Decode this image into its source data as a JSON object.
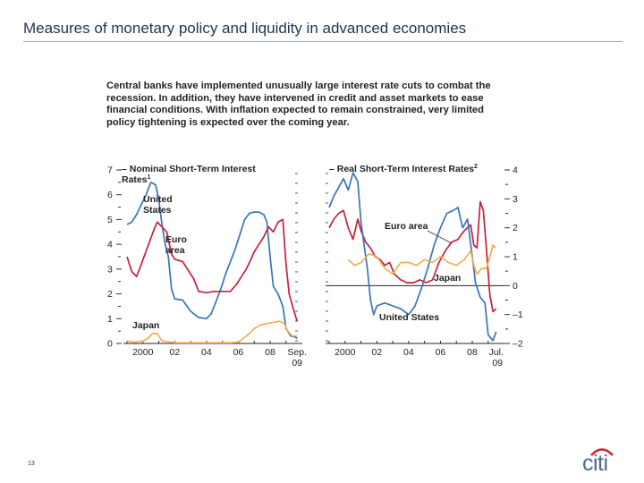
{
  "slide": {
    "title": "Measures of monetary policy and liquidity in advanced economies",
    "page_number": "13",
    "intro_lines": [
      "Central banks have implemented unusually large interest rate cuts to combat the",
      "recession. In addition, they have intervened in credit and asset markets to ease",
      "financial conditions. With inflation expected to remain constrained, very limited",
      "policy tightening is expected over the coming year."
    ],
    "logo_text": "citi",
    "logo_color": "#d32027"
  },
  "chart_data": [
    {
      "type": "line",
      "title_lines": [
        "Nominal Short-Term Interest",
        "Rates"
      ],
      "title_superscript": "1",
      "x_ticks": [
        {
          "x": 2000,
          "label": "2000"
        },
        {
          "x": 2002,
          "label": "02"
        },
        {
          "x": 2004,
          "label": "04"
        },
        {
          "x": 2006,
          "label": "06"
        },
        {
          "x": 2008,
          "label": "08"
        },
        {
          "x": 2009.7,
          "label": "Sep."
        }
      ],
      "x_sublabel": "09",
      "xlim": [
        1999.0,
        2009.8
      ],
      "ylim": [
        0,
        7
      ],
      "y_ticks": [
        0,
        1,
        2,
        3,
        4,
        5,
        6,
        7
      ],
      "y_axis_side": "left",
      "series": [
        {
          "name": "United States",
          "label_lines": [
            "United",
            "States"
          ],
          "color": "#3a74b8",
          "x": [
            1999.0,
            1999.3,
            1999.6,
            1999.9,
            2000.2,
            2000.5,
            2000.8,
            2001.0,
            2001.2,
            2001.4,
            2001.6,
            2001.8,
            2002.0,
            2002.5,
            2003.0,
            2003.5,
            2004.0,
            2004.3,
            2004.6,
            2004.9,
            2005.2,
            2005.5,
            2005.8,
            2006.1,
            2006.4,
            2006.7,
            2007.0,
            2007.3,
            2007.6,
            2007.8,
            2008.0,
            2008.2,
            2008.5,
            2008.8,
            2009.0,
            2009.3,
            2009.6,
            2009.7
          ],
          "y": [
            4.8,
            4.9,
            5.2,
            5.6,
            6.0,
            6.5,
            6.4,
            5.8,
            4.8,
            4.0,
            3.5,
            2.2,
            1.8,
            1.75,
            1.3,
            1.05,
            1.0,
            1.2,
            1.7,
            2.2,
            2.8,
            3.3,
            3.8,
            4.4,
            5.0,
            5.25,
            5.3,
            5.3,
            5.2,
            4.9,
            3.5,
            2.3,
            2.0,
            1.5,
            0.6,
            0.3,
            0.25,
            0.2
          ]
        },
        {
          "name": "Euro area",
          "label_lines": [
            "Euro",
            "area"
          ],
          "color": "#c8203a",
          "x": [
            1999.0,
            1999.3,
            1999.6,
            1999.9,
            2000.3,
            2000.7,
            2000.9,
            2001.2,
            2001.5,
            2001.8,
            2002.0,
            2002.5,
            2002.9,
            2003.2,
            2003.5,
            2004.0,
            2004.5,
            2005.0,
            2005.5,
            2005.9,
            2006.2,
            2006.5,
            2006.8,
            2007.0,
            2007.3,
            2007.6,
            2007.9,
            2008.2,
            2008.5,
            2008.8,
            2009.0,
            2009.2,
            2009.5,
            2009.7
          ],
          "y": [
            3.5,
            2.9,
            2.7,
            3.2,
            3.9,
            4.6,
            4.9,
            4.7,
            4.5,
            3.6,
            3.4,
            3.3,
            2.9,
            2.6,
            2.1,
            2.05,
            2.1,
            2.1,
            2.1,
            2.4,
            2.7,
            3.0,
            3.4,
            3.7,
            4.0,
            4.3,
            4.7,
            4.5,
            4.9,
            5.0,
            3.2,
            2.0,
            1.3,
            0.9
          ]
        },
        {
          "name": "Japan",
          "label_lines": [
            "Japan"
          ],
          "color": "#efae55",
          "x": [
            1999.0,
            1999.5,
            2000.0,
            2000.3,
            2000.6,
            2000.9,
            2001.2,
            2002.0,
            2003.0,
            2004.0,
            2005.0,
            2005.5,
            2006.0,
            2006.4,
            2006.7,
            2007.0,
            2007.4,
            2007.8,
            2008.2,
            2008.6,
            2008.9,
            2009.1,
            2009.4,
            2009.7
          ],
          "y": [
            0.1,
            0.05,
            0.1,
            0.2,
            0.4,
            0.4,
            0.1,
            0.03,
            0.03,
            0.03,
            0.03,
            0.03,
            0.05,
            0.25,
            0.4,
            0.6,
            0.75,
            0.8,
            0.85,
            0.9,
            0.8,
            0.5,
            0.3,
            0.3
          ]
        }
      ]
    },
    {
      "type": "line",
      "title_lines": [
        "Real Short-Term Interest Rates"
      ],
      "title_superscript": "2",
      "x_ticks": [
        {
          "x": 2000,
          "label": "2000"
        },
        {
          "x": 2002,
          "label": "02"
        },
        {
          "x": 2004,
          "label": "04"
        },
        {
          "x": 2006,
          "label": "06"
        },
        {
          "x": 2008,
          "label": "08"
        },
        {
          "x": 2009.5,
          "label": "Jul."
        }
      ],
      "x_sublabel": "09",
      "xlim": [
        1999.0,
        2009.8
      ],
      "ylim": [
        -2,
        4
      ],
      "y_ticks": [
        -2,
        -1,
        0,
        1,
        2,
        3,
        4
      ],
      "y_axis_side": "right",
      "zero_line": true,
      "series": [
        {
          "name": "Euro area",
          "label_lines": [
            "Euro area"
          ],
          "color": "#c8203a",
          "x": [
            1999.0,
            1999.3,
            1999.6,
            1999.9,
            2000.2,
            2000.5,
            2000.8,
            2001.0,
            2001.3,
            2001.6,
            2001.9,
            2002.2,
            2002.5,
            2002.8,
            2003.1,
            2003.5,
            2003.9,
            2004.3,
            2004.7,
            2005.1,
            2005.5,
            2005.9,
            2006.3,
            2006.7,
            2007.1,
            2007.5,
            2007.9,
            2008.1,
            2008.3,
            2008.5,
            2008.7,
            2008.9,
            2009.1,
            2009.3,
            2009.5
          ],
          "y": [
            2.0,
            2.3,
            2.5,
            2.6,
            2.0,
            1.6,
            2.3,
            1.9,
            1.5,
            1.3,
            1.0,
            0.9,
            0.7,
            0.8,
            0.4,
            0.2,
            0.1,
            0.1,
            0.2,
            0.1,
            0.2,
            0.8,
            1.2,
            1.5,
            1.6,
            1.9,
            2.1,
            1.4,
            1.3,
            2.9,
            2.6,
            1.2,
            -0.3,
            -0.9,
            -0.8
          ]
        },
        {
          "name": "United States",
          "label_lines": [
            "United States"
          ],
          "color": "#3a74b8",
          "x": [
            1999.0,
            1999.3,
            1999.6,
            1999.9,
            2000.2,
            2000.5,
            2000.8,
            2001.0,
            2001.2,
            2001.4,
            2001.6,
            2001.8,
            2002.0,
            2002.5,
            2003.0,
            2003.5,
            2004.0,
            2004.4,
            2004.8,
            2005.2,
            2005.6,
            2006.0,
            2006.4,
            2006.8,
            2007.1,
            2007.4,
            2007.7,
            2008.0,
            2008.2,
            2008.5,
            2008.8,
            2009.0,
            2009.3,
            2009.5
          ],
          "y": [
            2.7,
            3.1,
            3.4,
            3.7,
            3.3,
            3.9,
            3.6,
            2.2,
            1.4,
            0.6,
            -0.5,
            -1.0,
            -0.7,
            -0.6,
            -0.7,
            -0.8,
            -1.0,
            -0.7,
            -0.1,
            0.6,
            1.4,
            2.0,
            2.5,
            2.6,
            2.7,
            2.0,
            2.3,
            1.0,
            0.1,
            -0.4,
            -0.6,
            -1.7,
            -1.9,
            -1.6
          ]
        },
        {
          "name": "Japan",
          "label_lines": [
            "Japan"
          ],
          "color": "#efae55",
          "x": [
            2000.2,
            2000.6,
            2001.0,
            2001.5,
            2002.0,
            2002.5,
            2003.0,
            2003.5,
            2004.0,
            2004.5,
            2005.0,
            2005.5,
            2006.0,
            2006.5,
            2007.0,
            2007.5,
            2007.9,
            2008.1,
            2008.3,
            2008.6,
            2008.9,
            2009.1,
            2009.3,
            2009.5
          ],
          "y": [
            0.9,
            0.7,
            0.8,
            1.1,
            1.0,
            0.6,
            0.4,
            0.8,
            0.8,
            0.7,
            0.9,
            0.8,
            1.0,
            0.8,
            0.7,
            0.9,
            1.2,
            0.7,
            0.4,
            0.6,
            0.6,
            1.0,
            1.4,
            1.3
          ]
        }
      ]
    }
  ]
}
